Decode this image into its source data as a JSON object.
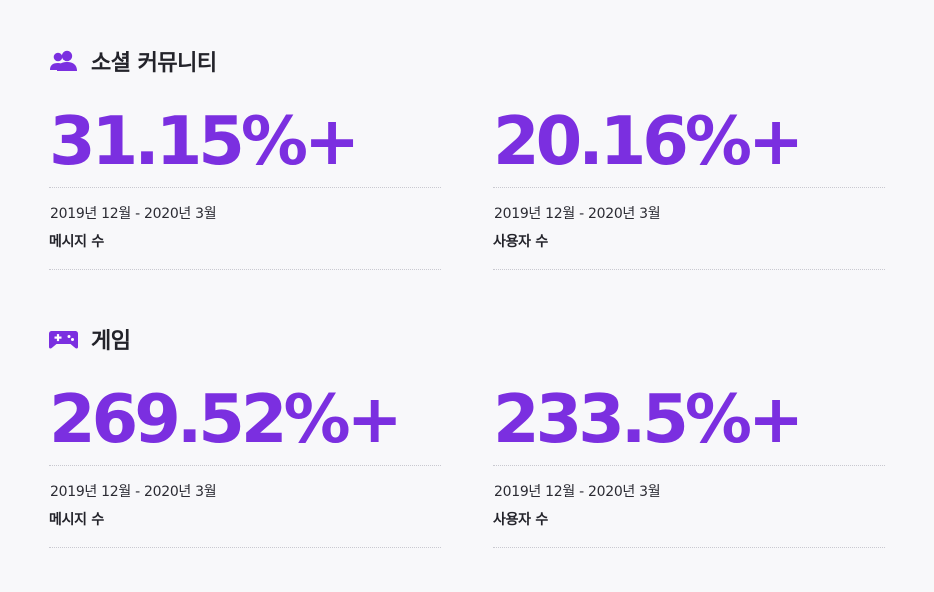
{
  "sections": {
    "social": {
      "icon": "people-icon",
      "title": "소셜 커뮤니티",
      "stats": [
        {
          "value": "31.15%+",
          "period": "2019년 12월 - 2020년 3월",
          "label": "메시지 수"
        },
        {
          "value": "20.16%+",
          "period": "2019년 12월 - 2020년 3월",
          "label": "사용자 수"
        }
      ]
    },
    "gaming": {
      "icon": "gamepad-icon",
      "title": "게임",
      "stats": [
        {
          "value": "269.52%+",
          "period": "2019년 12월 - 2020년 3월",
          "label": "메시지 수"
        },
        {
          "value": "233.5%+",
          "period": "2019년 12월 - 2020년 3월",
          "label": "사용자 수"
        }
      ]
    }
  },
  "colors": {
    "accent": "#7b2fe0",
    "text": "#23232a",
    "background": "#f8f8fa",
    "divider": "#c9c9d0"
  }
}
